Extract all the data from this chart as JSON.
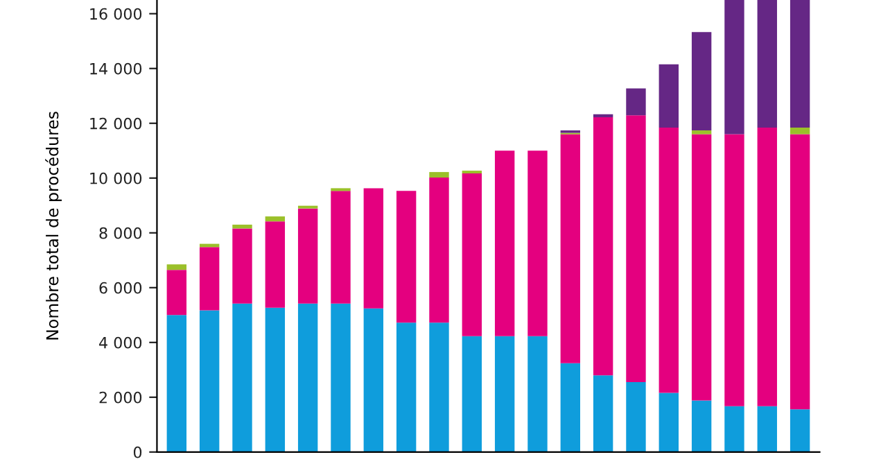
{
  "chart_data": {
    "type": "bar",
    "stacked": true,
    "ylabel": "Nombre total de procédures",
    "categories": [
      null,
      null,
      null,
      null,
      null,
      null,
      null,
      null,
      null,
      null,
      null,
      null,
      null,
      null,
      null,
      null,
      null,
      null,
      null,
      null
    ],
    "ylim": [
      0,
      16500
    ],
    "yticks": [
      0,
      {
        "value": 2000,
        "label": "2 000"
      },
      {
        "value": 4000,
        "label": "4 000"
      },
      {
        "value": 6000,
        "label": "6 000"
      },
      {
        "value": 8000,
        "label": "8 000"
      },
      {
        "value": 10000,
        "label": "10 000"
      },
      {
        "value": 12000,
        "label": "12 000"
      },
      {
        "value": 14000,
        "label": "14 000"
      },
      {
        "value": 16000,
        "label": "16 000"
      }
    ],
    "grid": false,
    "legend": false,
    "series": [
      {
        "color": "#0f9ddc",
        "values": [
          5000,
          5170,
          5420,
          5270,
          5420,
          5420,
          5240,
          4720,
          4720,
          4230,
          4230,
          4230,
          3240,
          2800,
          2550,
          2160,
          1880,
          1670,
          1670,
          1560
        ]
      },
      {
        "color": "#e4007f",
        "values": [
          1650,
          2310,
          2740,
          3150,
          3470,
          4110,
          4390,
          4810,
          5300,
          5940,
          6770,
          6770,
          8360,
          9420,
          9740,
          9680,
          9720,
          9930,
          10170,
          10040
        ]
      },
      {
        "color": "#9bc02a",
        "values": [
          200,
          120,
          140,
          180,
          100,
          100,
          0,
          0,
          200,
          100,
          0,
          0,
          50,
          0,
          0,
          0,
          140,
          0,
          0,
          240
        ]
      },
      {
        "color": "#652785",
        "values": [
          0,
          0,
          0,
          0,
          0,
          0,
          0,
          0,
          0,
          0,
          0,
          0,
          90,
          110,
          980,
          2310,
          3590,
          4900,
          4660,
          4660
        ]
      }
    ]
  }
}
